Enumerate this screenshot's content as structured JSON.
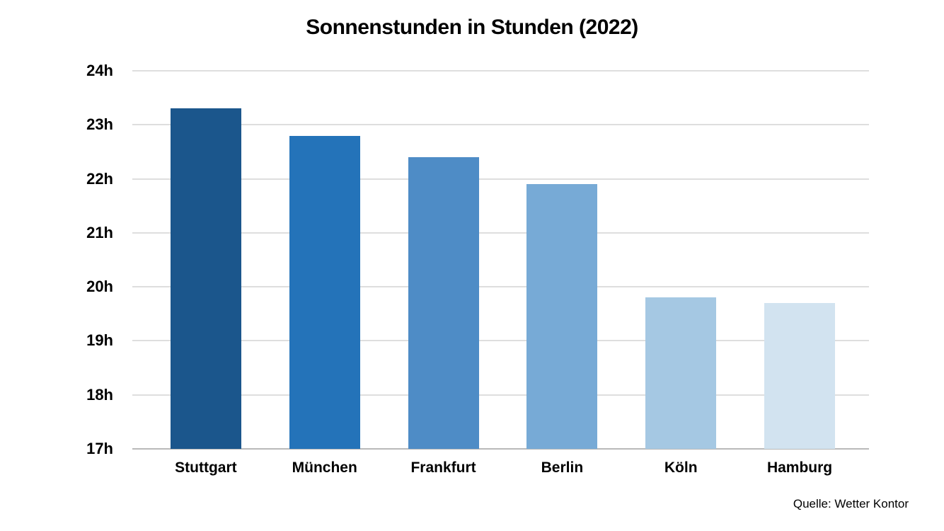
{
  "title": "Sonnenstunden in Stunden (2022)",
  "source_label": "Quelle: Wetter Kontor",
  "chart_data": {
    "type": "bar",
    "title": "Sonnenstunden in Stunden (2022)",
    "categories": [
      "Stuttgart",
      "München",
      "Frankfurt",
      "Berlin",
      "Köln",
      "Hamburg"
    ],
    "values": [
      23.3,
      22.8,
      22.4,
      21.9,
      19.8,
      19.7
    ],
    "unit": "h",
    "xlabel": "",
    "ylabel": "",
    "ylim": [
      17,
      24
    ],
    "ytick_step": 1,
    "ytick_labels": [
      "17h",
      "18h",
      "19h",
      "20h",
      "21h",
      "22h",
      "23h",
      "24h"
    ],
    "grid": true,
    "legend": "none",
    "bar_colors": [
      "#1b568c",
      "#2473b9",
      "#4e8cc6",
      "#77aad6",
      "#a5c8e3",
      "#d2e3f0"
    ],
    "gridline_color": "#dedede",
    "baseline_color": "#b9b9b9",
    "source": "Quelle: Wetter Kontor"
  }
}
